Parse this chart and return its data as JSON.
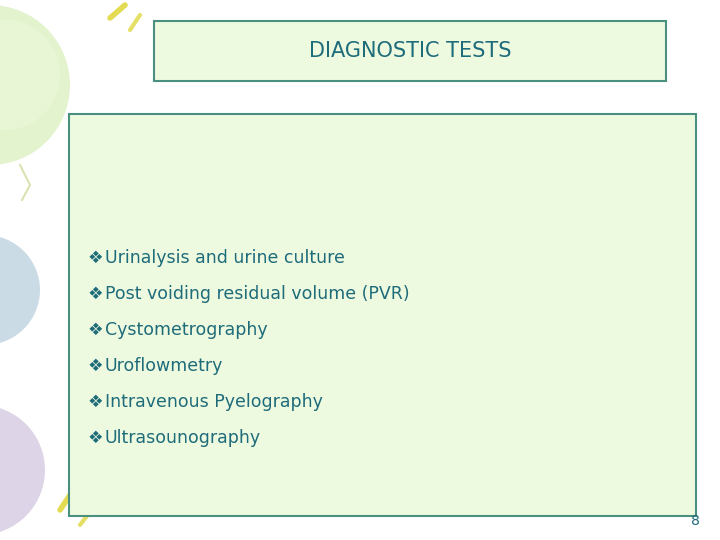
{
  "title": "DIAGNOSTIC TESTS",
  "title_color": "#1E6B7A",
  "title_box_color": "#EEFAE0",
  "title_box_edge": "#4A9080",
  "title_fontsize": 15,
  "bg_color": "#FFFFFF",
  "content_box_color": "#EEFAE0",
  "content_box_edge": "#4A9080",
  "bullet_items": [
    "Urinalysis and urine culture",
    "Post voiding residual volume (PVR)",
    "Cystometrography",
    "Uroflowmetry",
    "Intravenous Pyelography",
    "Ultrasounography"
  ],
  "bullet_color": "#1E6B7A",
  "bullet_fontsize": 12.5,
  "bullet_symbol": "❖",
  "page_number": "8",
  "page_num_color": "#1E6B7A",
  "decoration_color_green": "#D8EEB8",
  "decoration_color_blue": "#B0C8D8",
  "decoration_color_purple": "#C8B8D8",
  "decoration_color_yellow": "#EEEEA0"
}
